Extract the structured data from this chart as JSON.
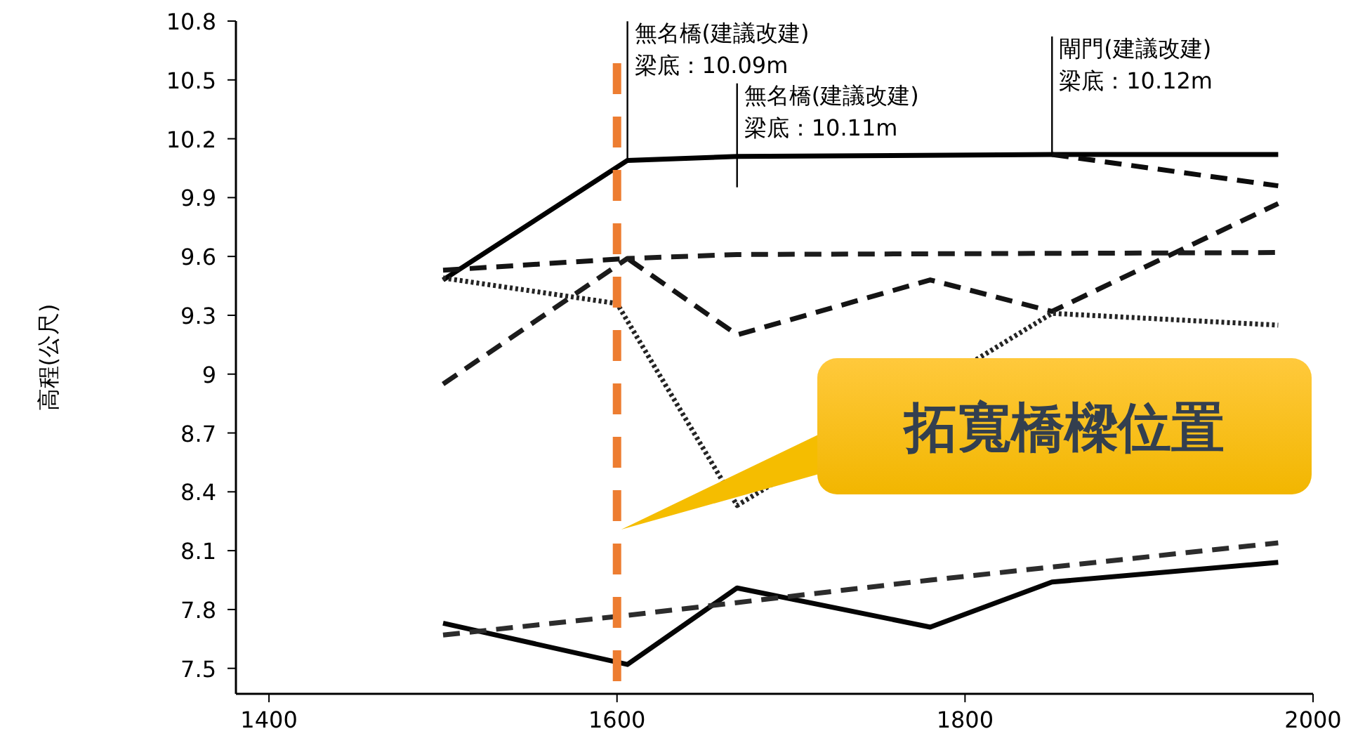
{
  "chart_data": {
    "type": "line",
    "ylabel": "高程(公尺)",
    "xlim": [
      1381,
      2000
    ],
    "xticks": [
      1400,
      1600,
      1800,
      2000
    ],
    "ylim": [
      7.37,
      10.8
    ],
    "yticks": [
      7.5,
      7.8,
      8.1,
      8.4,
      8.7,
      9,
      9.3,
      9.6,
      9.9,
      10.2,
      10.5,
      10.8
    ],
    "grid": false,
    "marker": "none",
    "series": [
      {
        "color": "#000000",
        "line_style": "solid",
        "x": [
          1500,
          1606,
          1669,
          1850,
          1980
        ],
        "values": [
          9.48,
          10.09,
          10.11,
          10.12,
          10.12
        ]
      },
      {
        "color": "#0c0c0c",
        "line_style": "dashed",
        "x": [
          1850,
          1980
        ],
        "values": [
          10.12,
          9.96
        ]
      },
      {
        "color": "#141414",
        "line_style": "dashed",
        "x": [
          1500,
          1606,
          1669,
          1780,
          1850,
          1980
        ],
        "values": [
          9.53,
          9.59,
          9.2,
          9.48,
          9.32,
          9.87
        ]
      },
      {
        "color": "#1c1c1c",
        "line_style": "dashed",
        "x": [
          1500,
          1606,
          1669,
          1980
        ],
        "values": [
          8.95,
          9.59,
          9.61,
          9.62
        ]
      },
      {
        "color": "#242424",
        "line_style": "dotted",
        "x": [
          1500,
          1600,
          1669,
          1850,
          1980
        ],
        "values": [
          9.49,
          9.36,
          8.33,
          9.31,
          9.25
        ]
      },
      {
        "color": "#050505",
        "line_style": "solid",
        "x": [
          1500,
          1606,
          1669,
          1780,
          1850,
          1980
        ],
        "values": [
          7.73,
          7.52,
          7.91,
          7.71,
          7.94,
          8.04
        ]
      },
      {
        "color": "#2c2c2c",
        "line_style": "dashed",
        "x": [
          1500,
          1606,
          1780,
          1980
        ],
        "values": [
          7.67,
          7.77,
          7.95,
          8.14
        ]
      }
    ],
    "ref_lines": [
      {
        "axis": "x",
        "value": 1600,
        "color": "#ed7d31",
        "line_style": "dashed"
      }
    ],
    "annotations": [
      {
        "text": "無名橋(建議改建)\n梁底：10.09m",
        "x": 1606,
        "y": 10.09
      },
      {
        "text": "無名橋(建議改建)\n梁底：10.11m",
        "x": 1669,
        "y": 10.11
      },
      {
        "text": "閘門(建議改建)\n梁底：10.12m",
        "x": 1850,
        "y": 10.12
      },
      "拓寬橋樑位置"
    ]
  }
}
